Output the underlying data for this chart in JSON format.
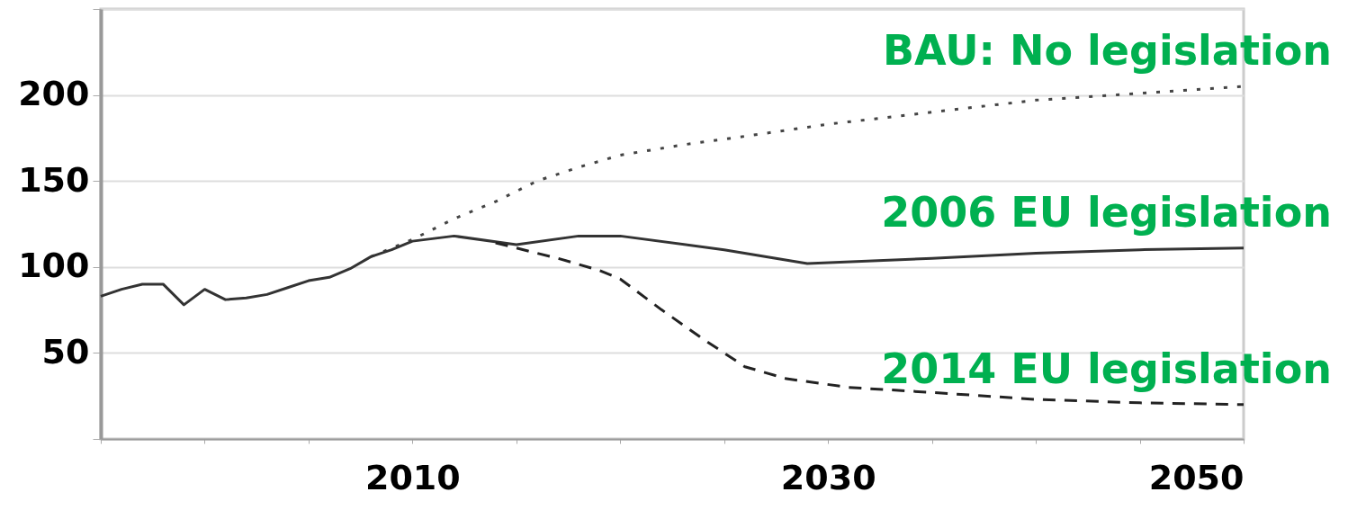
{
  "chart_data": {
    "type": "line",
    "xlim": [
      1995,
      2050
    ],
    "ylim": [
      0,
      250
    ],
    "xticks": [
      {
        "value": 1995,
        "label": null
      },
      {
        "value": 2000,
        "label": null
      },
      {
        "value": 2005,
        "label": null
      },
      2010,
      {
        "value": 2015,
        "label": null
      },
      {
        "value": 2020,
        "label": null
      },
      {
        "value": 2025,
        "label": null
      },
      2030,
      {
        "value": 2035,
        "label": null
      },
      {
        "value": 2040,
        "label": null
      },
      {
        "value": 2045,
        "label": null
      },
      2050
    ],
    "yticks": [
      {
        "value": 0,
        "label": null
      },
      50,
      100,
      150,
      200,
      {
        "value": 250,
        "label": null
      }
    ],
    "grid": "y",
    "marker": "none",
    "series": [
      {
        "name": "BAU: No legislation",
        "color": "#444444",
        "line_style": "dotted",
        "x": [
          2008,
          2010,
          2012,
          2014,
          2016,
          2018,
          2020,
          2023,
          2026,
          2030,
          2035,
          2040,
          2045,
          2050
        ],
        "values": [
          106,
          116,
          128,
          138,
          150,
          158,
          165,
          171,
          176,
          183,
          190,
          197,
          201,
          205
        ]
      },
      {
        "name": "2006 EU legislation",
        "color": "#333333",
        "line_style": "solid",
        "x": [
          1995,
          1996,
          1997,
          1998,
          1999,
          2000,
          2001,
          2002,
          2003,
          2004,
          2005,
          2006,
          2007,
          2008,
          2009,
          2010,
          2012,
          2015,
          2018,
          2020,
          2025,
          2029,
          2035,
          2040,
          2045,
          2050
        ],
        "values": [
          83,
          87,
          90,
          90,
          78,
          87,
          81,
          82,
          84,
          88,
          92,
          94,
          99,
          106,
          110,
          115,
          118,
          113,
          118,
          118,
          110,
          102,
          105,
          108,
          110,
          111
        ]
      },
      {
        "name": "2014 EU legislation",
        "color": "#222222",
        "line_style": "dashed",
        "x": [
          2014,
          2017,
          2019,
          2020,
          2022,
          2024,
          2025,
          2026,
          2028,
          2031,
          2035,
          2040,
          2045,
          2050
        ],
        "values": [
          114,
          105,
          98,
          93,
          75,
          58,
          50,
          42,
          35,
          30,
          27,
          23,
          21,
          20
        ]
      }
    ]
  }
}
